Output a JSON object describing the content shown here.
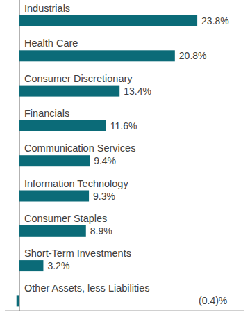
{
  "chart_data": {
    "type": "bar",
    "orientation": "horizontal",
    "categories": [
      "Industrials",
      "Health Care",
      "Consumer Discretionary",
      "Financials",
      "Communication Services",
      "Information Technology",
      "Consumer Staples",
      "Short-Term Investments",
      "Other Assets, less Liabilities"
    ],
    "values": [
      23.8,
      20.8,
      13.4,
      11.6,
      9.4,
      9.3,
      8.9,
      3.2,
      -0.4
    ],
    "value_labels": [
      "23.8%",
      "20.8%",
      "13.4%",
      "11.6%",
      "9.4%",
      "9.3%",
      "8.9%",
      "3.2%",
      "(0.4)%"
    ],
    "color": "#0b6b78",
    "xlim": [
      -2,
      30
    ],
    "xticks": [
      0
    ],
    "tick_labels": false,
    "data_labels": true
  }
}
